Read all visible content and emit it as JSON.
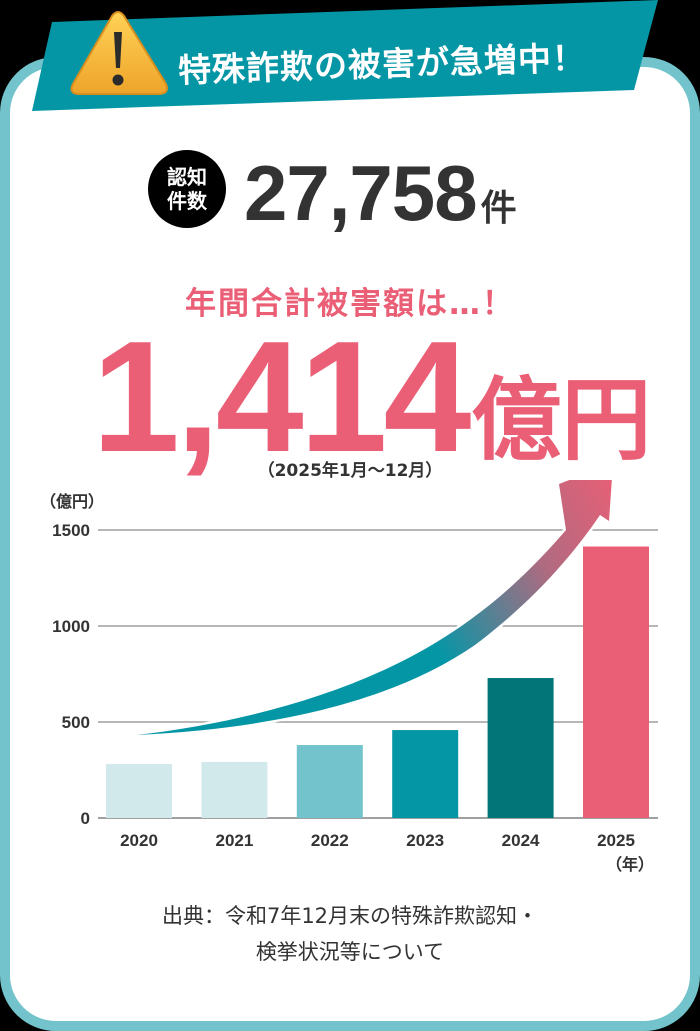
{
  "banner": {
    "icon": "warning-icon",
    "title": "特殊詐欺の被害が急増中！",
    "color": "#0596a6"
  },
  "recognition": {
    "badge_line1": "認知",
    "badge_line2": "件数",
    "count": "27,758",
    "unit": "件"
  },
  "damage": {
    "headline": "年間合計被害額は…！",
    "amount": "1,414",
    "unit": "億円",
    "period": "（2025年1月〜12月）",
    "color": "#ea5f76"
  },
  "chart_data": {
    "type": "bar",
    "title": "",
    "xlabel": "（年）",
    "ylabel": "（億円）",
    "ylim": [
      0,
      1500
    ],
    "yticks": [
      0,
      500,
      1000,
      1500
    ],
    "ytick_labels": [
      "0",
      "500",
      "1000",
      "1500"
    ],
    "grid": true,
    "categories": [
      "2020",
      "2021",
      "2022",
      "2023",
      "2024",
      "2025"
    ],
    "values": [
      281,
      292,
      380,
      458,
      729,
      1414
    ],
    "bar_colors": [
      "#d2e9ec",
      "#d2e9ec",
      "#72c3cb",
      "#0596a6",
      "#017578",
      "#ea5f76"
    ],
    "annotations": [
      "upward trend arrow (teal to pink gradient)"
    ],
    "legend": null
  },
  "source": {
    "line1": "出典：令和7年12月末の特殊詐欺認知・",
    "line2": "検挙状況等について"
  }
}
